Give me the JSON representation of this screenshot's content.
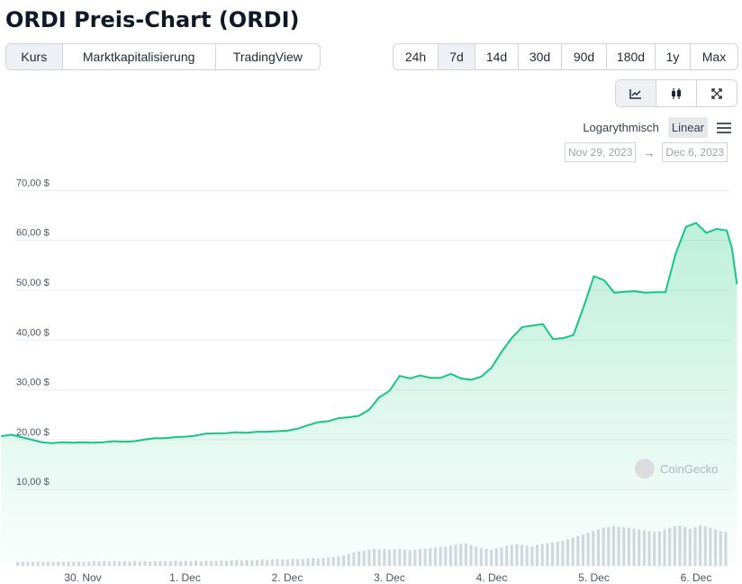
{
  "title": "ORDI Preis-Chart (ORDI)",
  "view_tabs": [
    "Kurs",
    "Marktkapitalisierung",
    "TradingView"
  ],
  "range_tabs": [
    "24h",
    "7d",
    "14d",
    "30d",
    "90d",
    "180d",
    "1y",
    "Max"
  ],
  "active_view": "Kurs",
  "active_range": "7d",
  "chart_icons": [
    "line-chart-icon",
    "candlestick-icon",
    "expand-icon"
  ],
  "scale": {
    "log_label": "Logarythmisch",
    "linear_label": "Linear",
    "active": "Linear"
  },
  "date_range": {
    "from": "Nov 29, 2023",
    "arrow": "→",
    "to": "Dec 6, 2023"
  },
  "watermark": "CoinGecko",
  "colors": {
    "line": "#16c784",
    "volume": "#d5d9de",
    "grid": "#ececec"
  },
  "chart_data": {
    "type": "area",
    "ylim": [
      0,
      70
    ],
    "y_ticks": [
      {
        "value": 10,
        "label": "10,00 $"
      },
      {
        "value": 20,
        "label": "20,00 $"
      },
      {
        "value": 30,
        "label": "30,00 $"
      },
      {
        "value": 40,
        "label": "40,00 $"
      },
      {
        "value": 50,
        "label": "50,00 $"
      },
      {
        "value": 60,
        "label": "60,00 $"
      },
      {
        "value": 70,
        "label": "70,00 $"
      }
    ],
    "x_ticks": [
      {
        "t": 1,
        "label": "30. Nov"
      },
      {
        "t": 2,
        "label": "1. Dec"
      },
      {
        "t": 3,
        "label": "2. Dec"
      },
      {
        "t": 4,
        "label": "3. Dec"
      },
      {
        "t": 5,
        "label": "4. Dec"
      },
      {
        "t": 6,
        "label": "5. Dec"
      },
      {
        "t": 7,
        "label": "6. Dec"
      }
    ],
    "price": [
      [
        0.2,
        20.7
      ],
      [
        0.3,
        21.0
      ],
      [
        0.4,
        20.5
      ],
      [
        0.5,
        20.0
      ],
      [
        0.6,
        19.5
      ],
      [
        0.7,
        19.3
      ],
      [
        0.8,
        19.5
      ],
      [
        0.9,
        19.4
      ],
      [
        1.0,
        19.5
      ],
      [
        1.1,
        19.4
      ],
      [
        1.2,
        19.5
      ],
      [
        1.3,
        19.7
      ],
      [
        1.4,
        19.6
      ],
      [
        1.5,
        19.7
      ],
      [
        1.6,
        20.0
      ],
      [
        1.7,
        20.3
      ],
      [
        1.8,
        20.3
      ],
      [
        1.9,
        20.5
      ],
      [
        2.0,
        20.6
      ],
      [
        2.1,
        20.8
      ],
      [
        2.2,
        21.2
      ],
      [
        2.3,
        21.3
      ],
      [
        2.4,
        21.3
      ],
      [
        2.5,
        21.5
      ],
      [
        2.6,
        21.4
      ],
      [
        2.7,
        21.6
      ],
      [
        2.8,
        21.6
      ],
      [
        2.9,
        21.7
      ],
      [
        3.0,
        21.8
      ],
      [
        3.1,
        22.2
      ],
      [
        3.2,
        22.9
      ],
      [
        3.3,
        23.5
      ],
      [
        3.4,
        23.7
      ],
      [
        3.5,
        24.3
      ],
      [
        3.6,
        24.5
      ],
      [
        3.7,
        24.8
      ],
      [
        3.8,
        26.0
      ],
      [
        3.9,
        28.5
      ],
      [
        4.0,
        29.8
      ],
      [
        4.1,
        32.8
      ],
      [
        4.2,
        32.3
      ],
      [
        4.3,
        32.9
      ],
      [
        4.4,
        32.4
      ],
      [
        4.5,
        32.4
      ],
      [
        4.6,
        33.2
      ],
      [
        4.7,
        32.3
      ],
      [
        4.8,
        32.0
      ],
      [
        4.9,
        32.7
      ],
      [
        5.0,
        34.5
      ],
      [
        5.1,
        37.7
      ],
      [
        5.2,
        40.5
      ],
      [
        5.3,
        42.6
      ],
      [
        5.4,
        42.9
      ],
      [
        5.5,
        43.2
      ],
      [
        5.6,
        40.2
      ],
      [
        5.7,
        40.4
      ],
      [
        5.8,
        41.0
      ],
      [
        5.9,
        46.7
      ],
      [
        6.0,
        52.8
      ],
      [
        6.1,
        52.0
      ],
      [
        6.2,
        49.5
      ],
      [
        6.3,
        49.7
      ],
      [
        6.4,
        49.8
      ],
      [
        6.5,
        49.5
      ],
      [
        6.6,
        49.6
      ],
      [
        6.7,
        49.6
      ],
      [
        6.8,
        57.3
      ],
      [
        6.9,
        62.7
      ],
      [
        7.0,
        63.5
      ],
      [
        7.1,
        61.5
      ],
      [
        7.2,
        62.3
      ],
      [
        7.3,
        62.0
      ],
      [
        7.35,
        58.5
      ],
      [
        7.4,
        51.2
      ]
    ],
    "volume": [
      0.5,
      0.55,
      0.5,
      0.5,
      0.55,
      0.5,
      0.55,
      0.5,
      0.55,
      0.5,
      0.55,
      0.5,
      0.55,
      0.5,
      0.55,
      0.6,
      0.55,
      0.6,
      0.55,
      0.6,
      0.55,
      0.6,
      0.55,
      0.6,
      0.55,
      0.6,
      0.55,
      0.6,
      0.6,
      0.6,
      0.6,
      0.65,
      0.6,
      0.65,
      0.6,
      0.65,
      0.6,
      0.65,
      0.6,
      0.65,
      0.7,
      0.65,
      0.7,
      0.75,
      0.7,
      0.75,
      0.7,
      0.75,
      0.8,
      0.75,
      0.8,
      0.85,
      0.8,
      0.85,
      0.9,
      0.85,
      0.9,
      0.95,
      1.0,
      0.95,
      1.0,
      1.05,
      1.1,
      1.2,
      1.3,
      1.5,
      1.7,
      1.8,
      1.9,
      2.0,
      2.1,
      2.05,
      2.1,
      2.0,
      2.05,
      2.1,
      2.0,
      1.95,
      2.0,
      2.1,
      2.15,
      2.2,
      2.3,
      2.35,
      2.4,
      2.5,
      2.6,
      2.7,
      2.8,
      2.6,
      2.4,
      2.2,
      2.1,
      2.0,
      2.2,
      2.3,
      2.5,
      2.6,
      2.7,
      2.6,
      2.5,
      2.4,
      2.6,
      2.7,
      2.8,
      2.9,
      3.0,
      3.1,
      3.3,
      3.5,
      3.7,
      3.9,
      4.1,
      4.3,
      4.5,
      4.7,
      4.8,
      4.9,
      4.85,
      4.8,
      4.7,
      4.6,
      4.5,
      4.4,
      4.3,
      4.2,
      4.3,
      4.5,
      4.7,
      4.9,
      5.0,
      4.8,
      4.6,
      4.8,
      5.0,
      4.9,
      4.7,
      4.5,
      4.3,
      4.2
    ]
  }
}
